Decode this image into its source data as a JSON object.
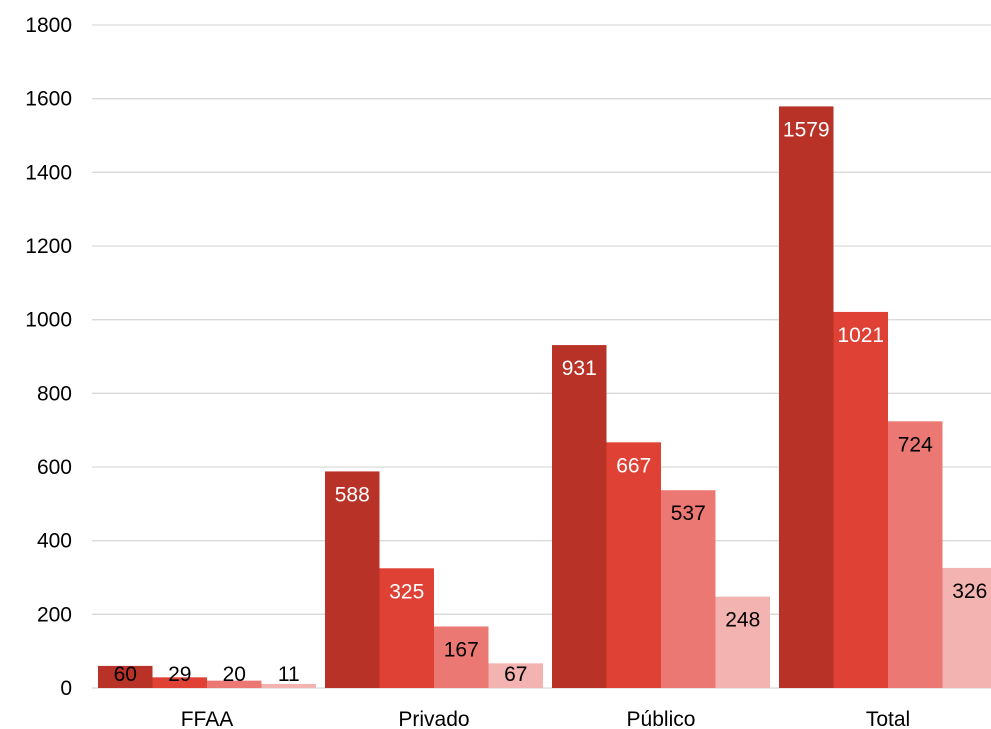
{
  "chart_data": {
    "type": "bar",
    "title": "",
    "xlabel": "",
    "ylabel": "",
    "categories": [
      "FFAA",
      "Privado",
      "Público",
      "Total"
    ],
    "ylim": [
      0,
      1800
    ],
    "yticks": [
      "0",
      "200",
      "400",
      "600",
      "800",
      "1000",
      "1200",
      "1400",
      "1600",
      "1800"
    ],
    "grid": true,
    "legend": "none",
    "series": [
      {
        "values": [
          60,
          588,
          931,
          1579
        ],
        "color": "#b83227",
        "label_color": "#ffffff"
      },
      {
        "values": [
          29,
          325,
          667,
          1021
        ],
        "color": "#df4134",
        "label_color": "#ffffff"
      },
      {
        "values": [
          20,
          167,
          537,
          724
        ],
        "color": "#ec7873",
        "label_color": "#000000"
      },
      {
        "values": [
          11,
          67,
          248,
          326
        ],
        "color": "#f3b3b0",
        "label_color": "#000000"
      }
    ],
    "data_labels": [
      [
        "60",
        "588",
        "931",
        "1579"
      ],
      [
        "29",
        "325",
        "667",
        "1021"
      ],
      [
        "20",
        "167",
        "537",
        "724"
      ],
      [
        "11",
        "67",
        "248",
        "326"
      ]
    ]
  }
}
